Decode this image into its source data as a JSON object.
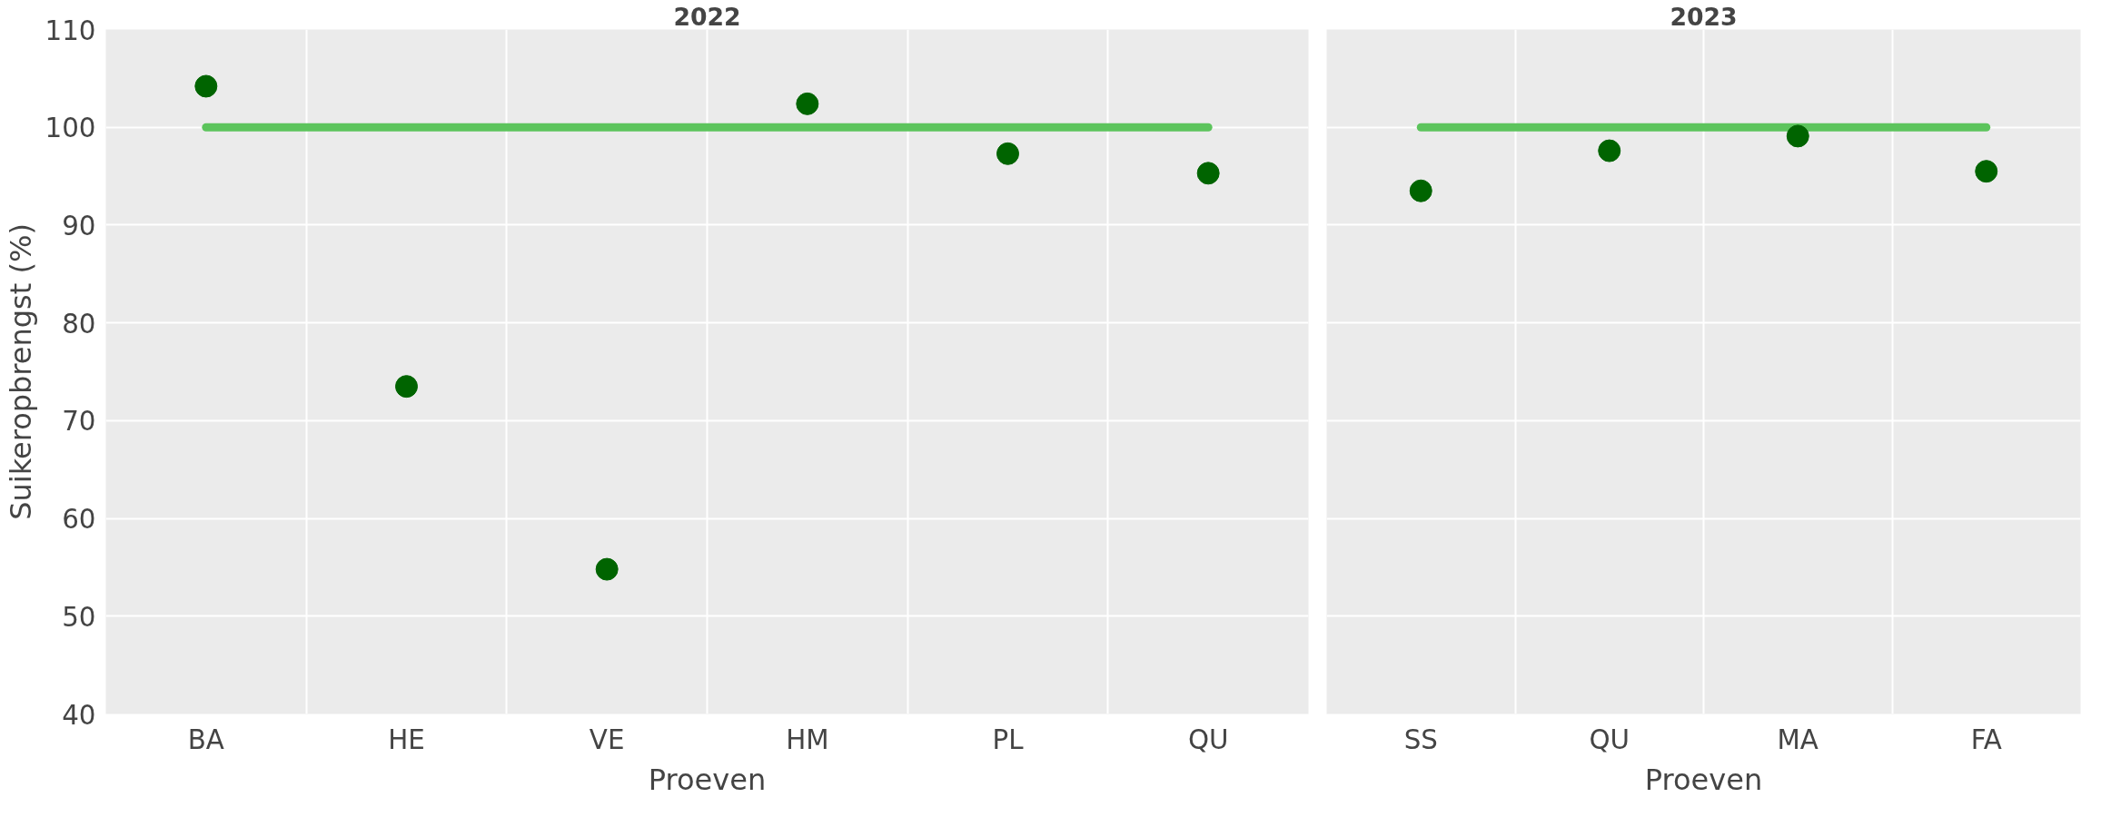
{
  "chart_data": [
    {
      "type": "scatter",
      "title": "2022",
      "xlabel": "Proeven",
      "ylabel": "Suikeropbrengst (%)",
      "categories": [
        "BA",
        "HE",
        "VE",
        "HM",
        "PL",
        "QU"
      ],
      "ylim": [
        40,
        110
      ],
      "yticks": [
        40,
        50,
        60,
        70,
        80,
        90,
        100,
        110
      ],
      "grid": true,
      "series": [
        {
          "type": "line",
          "color": "#5cc45c",
          "values": [
            100,
            100,
            100,
            100,
            100,
            100
          ]
        },
        {
          "color": "#006400",
          "marker": "circle",
          "values": [
            104.2,
            73.5,
            54.8,
            102.4,
            97.3,
            95.3
          ]
        }
      ]
    },
    {
      "type": "scatter",
      "title": "2023",
      "xlabel": "Proeven",
      "categories": [
        "SS",
        "QU",
        "MA",
        "FA"
      ],
      "ylim": [
        40,
        110
      ],
      "yticks": [
        40,
        50,
        60,
        70,
        80,
        90,
        100,
        110
      ],
      "grid": true,
      "tick_labels": "x",
      "series": [
        {
          "type": "line",
          "color": "#5cc45c",
          "values": [
            100,
            100,
            100,
            100
          ]
        },
        {
          "color": "#006400",
          "marker": "circle",
          "values": [
            93.5,
            97.6,
            99.1,
            95.5
          ]
        }
      ]
    }
  ]
}
